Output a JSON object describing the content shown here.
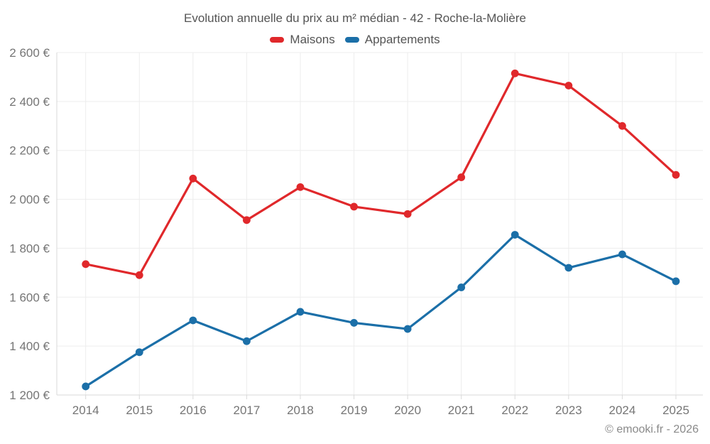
{
  "chart_data": {
    "type": "line",
    "title": "Evolution annuelle du prix au m² médian - 42 - Roche-la-Molière",
    "categories": [
      "2014",
      "2015",
      "2016",
      "2017",
      "2018",
      "2019",
      "2020",
      "2021",
      "2022",
      "2023",
      "2024",
      "2025"
    ],
    "series": [
      {
        "name": "Maisons",
        "color": "#e0282b",
        "values": [
          1735,
          1690,
          2085,
          1915,
          2050,
          1970,
          1940,
          2090,
          2515,
          2465,
          2300,
          2100
        ]
      },
      {
        "name": "Appartements",
        "color": "#1b6fa8",
        "values": [
          1235,
          1375,
          1505,
          1420,
          1540,
          1495,
          1470,
          1640,
          1855,
          1720,
          1775,
          1665
        ]
      }
    ],
    "ylim": [
      1200,
      2600
    ],
    "y_tick_step": 200,
    "y_tick_labels": [
      "1 200 €",
      "1 400 €",
      "1 600 €",
      "1 800 €",
      "2 000 €",
      "2 200 €",
      "2 400 €",
      "2 600 €"
    ],
    "xlabel": "",
    "ylabel": "",
    "grid": "on",
    "legend_position": "top"
  },
  "footer": {
    "credit": "© emooki.fr - 2026"
  },
  "colors": {
    "grid_line": "#ededed",
    "axis_line": "#d9d9d9",
    "tick_label": "#757575",
    "title_text": "#545454",
    "background": "#ffffff"
  }
}
